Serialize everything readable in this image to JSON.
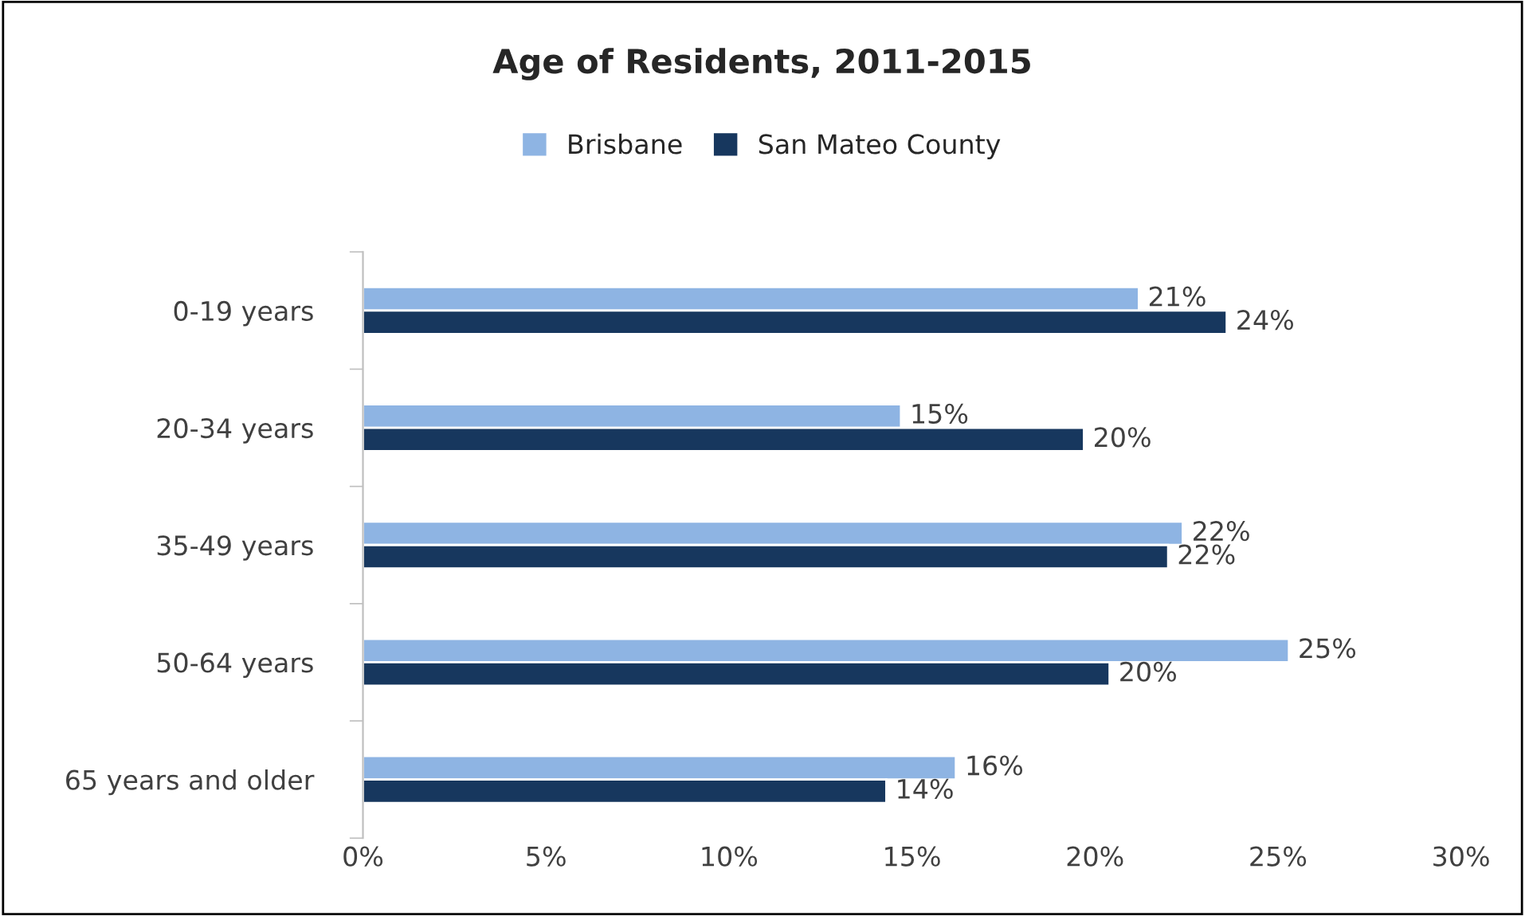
{
  "chart_data": {
    "type": "bar",
    "orientation": "horizontal",
    "title": "Age of Residents, 2011-2015",
    "categories": [
      "0-19 years",
      "20-34 years",
      "35-49 years",
      "50-64 years",
      "65 years and older"
    ],
    "series": [
      {
        "name": "Brisbane",
        "color": "#8eb4e3",
        "values": [
          21.2,
          14.7,
          22.4,
          25.3,
          16.2
        ],
        "value_labels": [
          "21%",
          "15%",
          "22%",
          "25%",
          "16%"
        ]
      },
      {
        "name": "San Mateo County",
        "color": "#17375e",
        "values": [
          23.6,
          19.7,
          22.0,
          20.4,
          14.3
        ],
        "value_labels": [
          "24%",
          "20%",
          "22%",
          "20%",
          "14%"
        ]
      }
    ],
    "xlim": [
      0,
      30
    ],
    "xticks": [
      {
        "value": 0,
        "label": "0%"
      },
      {
        "value": 5,
        "label": "5%"
      },
      {
        "value": 10,
        "label": "10%"
      },
      {
        "value": 15,
        "label": "15%"
      },
      {
        "value": 20,
        "label": "20%"
      },
      {
        "value": 25,
        "label": "25%"
      },
      {
        "value": 30,
        "label": "30%"
      }
    ],
    "legend": "top",
    "grid": false
  }
}
